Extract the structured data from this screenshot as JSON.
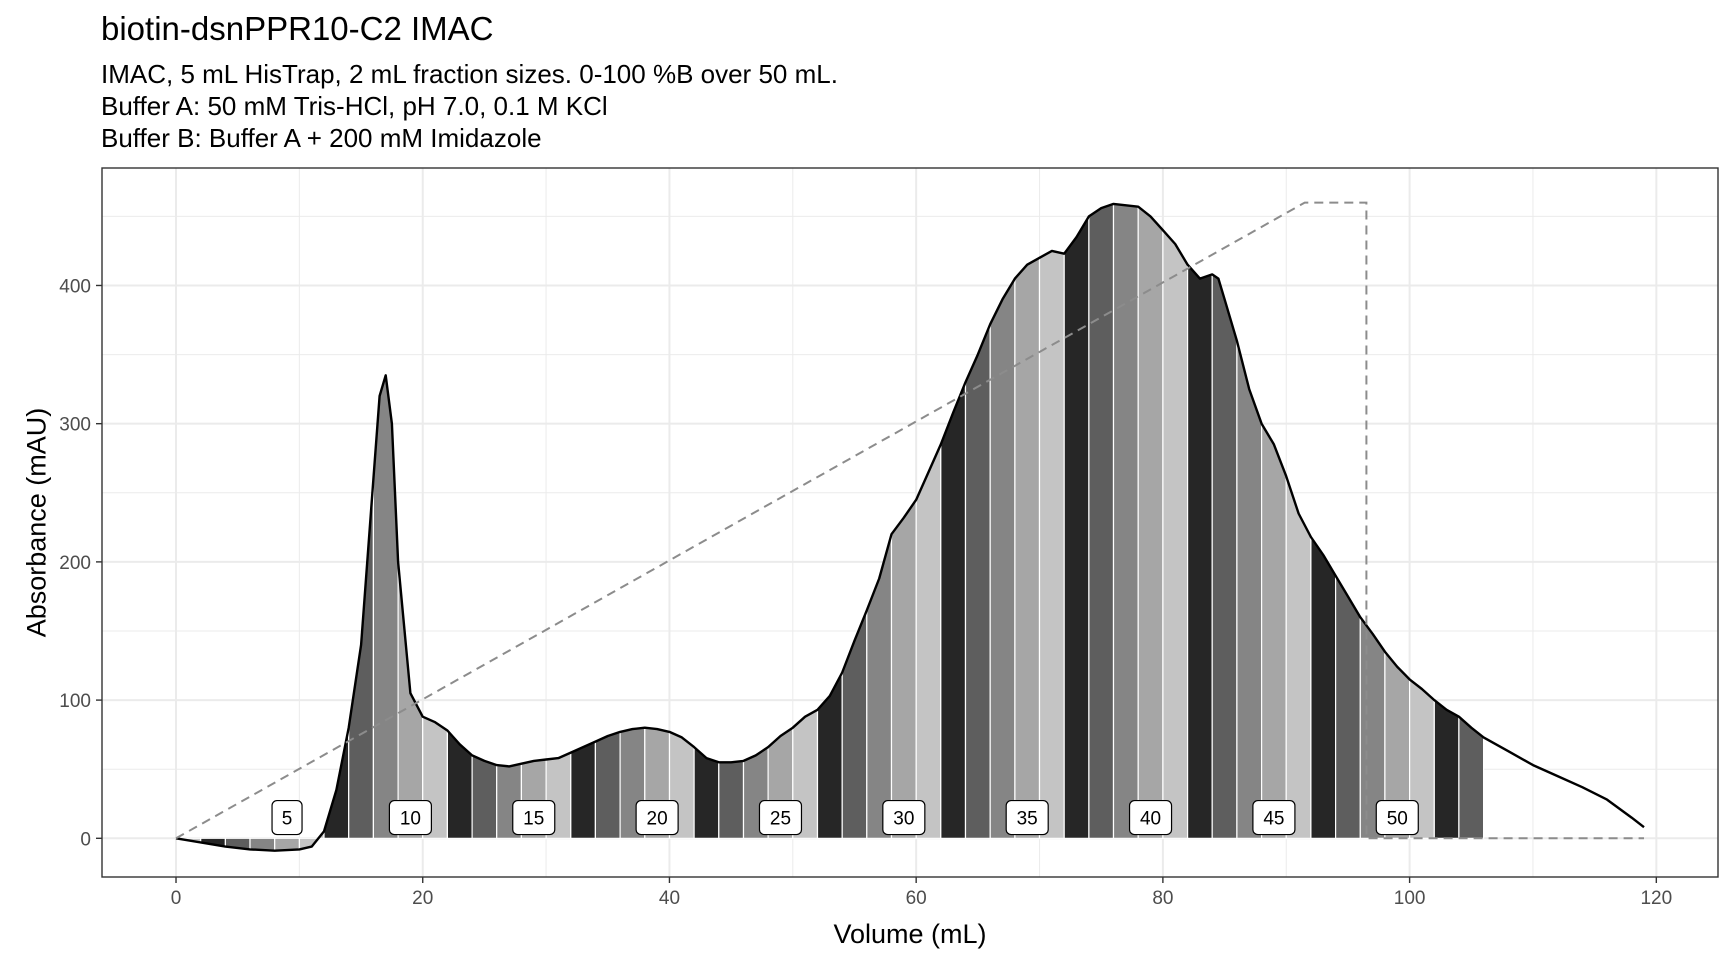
{
  "chart_data": {
    "type": "area",
    "title": "biotin-dsnPPR10-C2 IMAC",
    "subtitle": [
      "IMAC, 5 mL HisTrap, 2 mL fraction sizes. 0-100 %B over 50 mL.",
      "Buffer A: 50 mM Tris-HCl, pH 7.0, 0.1 M KCl",
      "Buffer B: Buffer A + 200 mM Imidazole"
    ],
    "xlabel": "Volume (mL)",
    "ylabel": "Absorbance (mAU)",
    "xlim": [
      -6,
      125
    ],
    "ylim": [
      -28,
      485
    ],
    "x_ticks": [
      0,
      20,
      40,
      60,
      80,
      100,
      120
    ],
    "y_ticks": [
      0,
      100,
      200,
      300,
      400
    ],
    "grid": true,
    "absorbance": {
      "x": [
        0,
        2,
        4,
        6,
        8,
        10,
        11,
        12,
        13,
        14,
        15,
        16,
        16.5,
        17,
        17.5,
        18,
        19,
        20,
        21,
        22,
        23,
        24,
        25,
        26,
        27,
        28,
        29,
        30,
        31,
        32,
        33,
        34,
        35,
        36,
        37,
        38,
        39,
        40,
        41,
        42,
        43,
        44,
        45,
        46,
        47,
        48,
        49,
        50,
        51,
        52,
        53,
        54,
        55,
        56,
        57,
        58,
        59,
        60,
        61,
        62,
        63,
        64,
        65,
        66,
        67,
        68,
        69,
        70,
        71,
        72,
        73,
        74,
        75,
        76,
        77,
        78,
        79,
        80,
        81,
        82,
        83,
        84,
        84.5,
        85,
        86,
        87,
        88,
        89,
        90,
        91,
        92,
        93,
        94,
        95,
        96,
        97,
        98,
        99,
        100,
        101,
        102,
        103,
        104,
        105,
        106,
        108,
        110,
        112,
        114,
        116,
        118,
        119
      ],
      "y": [
        0,
        -3,
        -6,
        -8,
        -9,
        -8,
        -6,
        5,
        35,
        80,
        140,
        260,
        320,
        335,
        300,
        200,
        105,
        88,
        84,
        78,
        68,
        60,
        56,
        53,
        52,
        54,
        56,
        57,
        58,
        62,
        66,
        70,
        74,
        77,
        79,
        80,
        79,
        77,
        73,
        66,
        58,
        55,
        55,
        56,
        60,
        66,
        74,
        80,
        88,
        93,
        103,
        120,
        143,
        165,
        188,
        220,
        232,
        245,
        265,
        285,
        308,
        330,
        350,
        372,
        390,
        405,
        415,
        420,
        425,
        423,
        435,
        450,
        456,
        459,
        458,
        457,
        450,
        440,
        430,
        415,
        405,
        408,
        405,
        390,
        360,
        325,
        300,
        285,
        262,
        235,
        218,
        205,
        190,
        175,
        160,
        148,
        135,
        124,
        115,
        108,
        100,
        93,
        88,
        80,
        73,
        63,
        53,
        45,
        37,
        28,
        15,
        8
      ]
    },
    "gradient_pct_b": {
      "x": [
        0,
        91.5,
        96.5,
        96.5,
        119
      ],
      "y": [
        0,
        100,
        100,
        0,
        0
      ]
    },
    "gradient_scale_mau_per_pct": 4.6,
    "fractions": {
      "size_ml": 2,
      "first_start_ml": 0,
      "last_end_ml": 106,
      "labelled": [
        "5",
        "10",
        "15",
        "20",
        "25",
        "30",
        "35",
        "40",
        "45",
        "50"
      ],
      "shades": [
        "#a6a6a6",
        "#c4c4c4",
        "#262626",
        "#5e5e5e",
        "#858585"
      ]
    },
    "colors": {
      "curve": "#000000",
      "gradient_line": "#8c8c8c",
      "grid": "#ebebeb",
      "panel_border": "#333333"
    }
  }
}
